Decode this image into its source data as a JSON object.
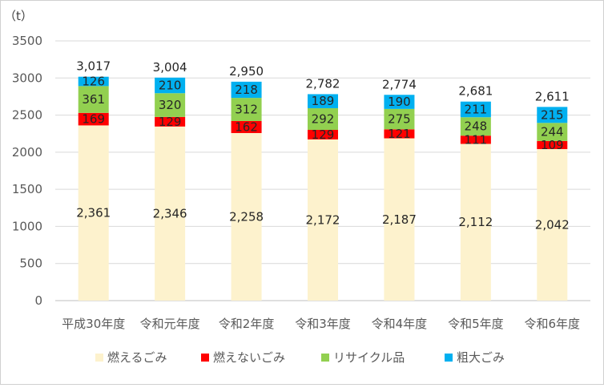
{
  "chart_data": {
    "type": "bar",
    "stacked": true,
    "unit": "（t）",
    "categories": [
      "平成30年度",
      "令和元年度",
      "令和2年度",
      "令和3年度",
      "令和4年度",
      "令和5年度",
      "令和6年度"
    ],
    "ylim": [
      0,
      3500
    ],
    "yticks": [
      "0",
      "500",
      "1000",
      "1500",
      "2000",
      "2500",
      "3000",
      "3500"
    ],
    "grid": true,
    "legend_position": "bottom",
    "series": [
      {
        "name": "燃えるごみ",
        "color": "#fdf2cd",
        "values": [
          2361,
          2346,
          2258,
          2172,
          2187,
          2112,
          2042
        ],
        "labels": [
          "2,361",
          "2,346",
          "2,258",
          "2,172",
          "2,187",
          "2,112",
          "2,042"
        ]
      },
      {
        "name": "燃えないごみ",
        "color": "#ff0000",
        "values": [
          169,
          129,
          162,
          129,
          121,
          111,
          109
        ],
        "labels": [
          "169",
          "129",
          "162",
          "129",
          "121",
          "111",
          "109"
        ]
      },
      {
        "name": "リサイクル品",
        "color": "#92d050",
        "values": [
          361,
          320,
          312,
          292,
          275,
          248,
          244
        ],
        "labels": [
          "361",
          "320",
          "312",
          "292",
          "275",
          "248",
          "244"
        ]
      },
      {
        "name": "粗大ごみ",
        "color": "#00b0f0",
        "values": [
          126,
          210,
          218,
          189,
          190,
          211,
          215
        ],
        "labels": [
          "126",
          "210",
          "218",
          "189",
          "190",
          "211",
          "215"
        ]
      }
    ],
    "totals": [
      "3,017",
      "3,004",
      "2,950",
      "2,782",
      "2,774",
      "2,681",
      "2,611"
    ]
  }
}
